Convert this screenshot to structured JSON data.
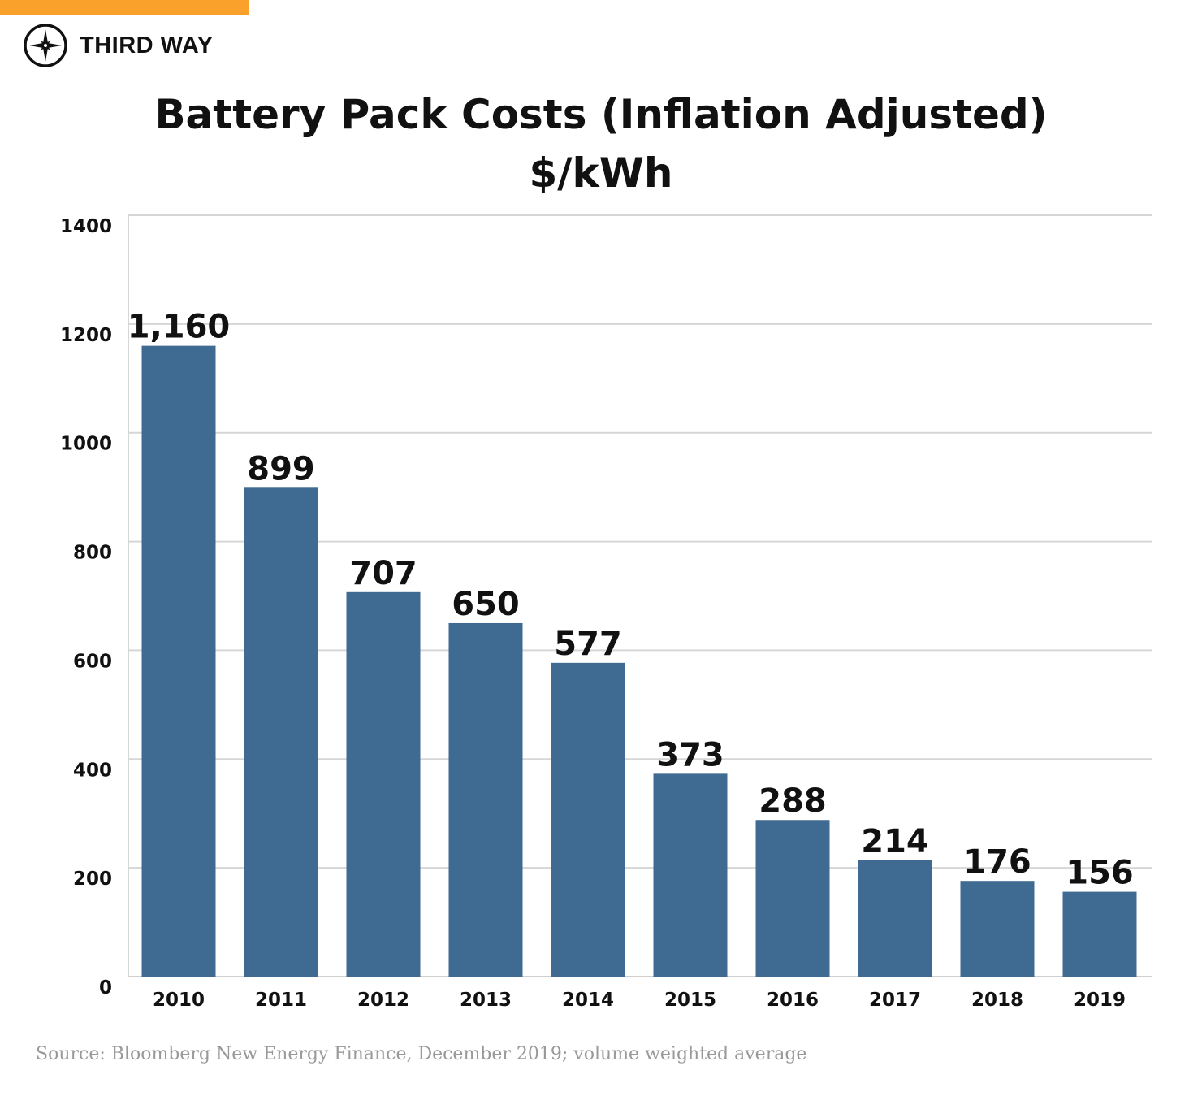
{
  "brand": {
    "name": "THIRD WAY",
    "accent_color": "#f9a12a",
    "icon": "compass-star-icon"
  },
  "chart_data": {
    "type": "bar",
    "title": "Battery Pack Costs (Inflation Adjusted)",
    "subtitle": "$/kWh",
    "categories": [
      "2010",
      "2011",
      "2012",
      "2013",
      "2014",
      "2015",
      "2016",
      "2017",
      "2018",
      "2019"
    ],
    "values": [
      1160,
      899,
      707,
      650,
      577,
      373,
      288,
      214,
      176,
      156
    ],
    "data_labels": [
      "1,160",
      "899",
      "707",
      "650",
      "577",
      "373",
      "288",
      "214",
      "176",
      "156"
    ],
    "xlabel": "",
    "ylabel": "",
    "ylim": [
      0,
      1400
    ],
    "yticks": [
      0,
      200,
      400,
      600,
      800,
      1000,
      1200,
      1400
    ],
    "grid": true,
    "legend": "none",
    "bar_color": "#3f6a91"
  },
  "source": "Source: Bloomberg New Energy Finance, December 2019; volume weighted average"
}
